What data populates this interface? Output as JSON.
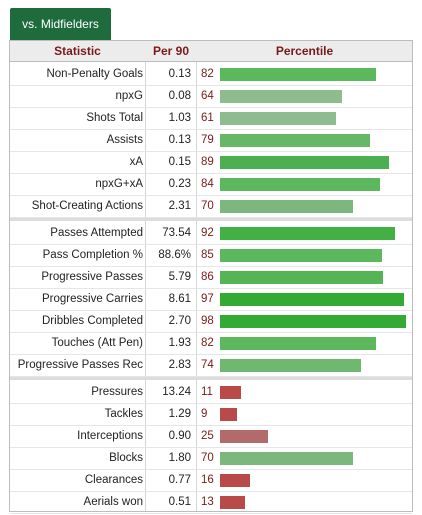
{
  "tab": {
    "label": "vs. Midfielders"
  },
  "headers": {
    "statistic": "Statistic",
    "per90": "Per 90",
    "percentile": "Percentile"
  },
  "rows": [
    {
      "stat": "Non-Penalty Goals",
      "per90": "0.13",
      "pct": "82",
      "color": "#5cb85c"
    },
    {
      "stat": "npxG",
      "per90": "0.08",
      "pct": "64",
      "color": "#8fbc8f"
    },
    {
      "stat": "Shots Total",
      "per90": "1.03",
      "pct": "61",
      "color": "#8fbc8f"
    },
    {
      "stat": "Assists",
      "per90": "0.13",
      "pct": "79",
      "color": "#66b866"
    },
    {
      "stat": "xA",
      "per90": "0.15",
      "pct": "89",
      "color": "#4caf50"
    },
    {
      "stat": "npxG+xA",
      "per90": "0.23",
      "pct": "84",
      "color": "#5cb85c"
    },
    {
      "stat": "Shot-Creating Actions",
      "per90": "2.31",
      "pct": "70",
      "color": "#7cb77c"
    },
    {
      "stat": "Passes Attempted",
      "per90": "73.54",
      "pct": "92",
      "color": "#43b043"
    },
    {
      "stat": "Pass Completion %",
      "per90": "88.6%",
      "pct": "85",
      "color": "#5cb85c"
    },
    {
      "stat": "Progressive Passes",
      "per90": "5.79",
      "pct": "86",
      "color": "#55b455"
    },
    {
      "stat": "Progressive Carries",
      "per90": "8.61",
      "pct": "97",
      "color": "#33aa33"
    },
    {
      "stat": "Dribbles Completed",
      "per90": "2.70",
      "pct": "98",
      "color": "#33aa33"
    },
    {
      "stat": "Touches (Att Pen)",
      "per90": "1.93",
      "pct": "82",
      "color": "#5cb85c"
    },
    {
      "stat": "Progressive Passes Rec",
      "per90": "2.83",
      "pct": "74",
      "color": "#6fb86f"
    },
    {
      "stat": "Pressures",
      "per90": "13.24",
      "pct": "11",
      "color": "#b94a4a"
    },
    {
      "stat": "Tackles",
      "per90": "1.29",
      "pct": "9",
      "color": "#b94a4a"
    },
    {
      "stat": "Interceptions",
      "per90": "0.90",
      "pct": "25",
      "color": "#b26a6a"
    },
    {
      "stat": "Blocks",
      "per90": "1.80",
      "pct": "70",
      "color": "#7cb77c"
    },
    {
      "stat": "Clearances",
      "per90": "0.77",
      "pct": "16",
      "color": "#b94a4a"
    },
    {
      "stat": "Aerials won",
      "per90": "0.51",
      "pct": "13",
      "color": "#b94a4a"
    }
  ]
}
